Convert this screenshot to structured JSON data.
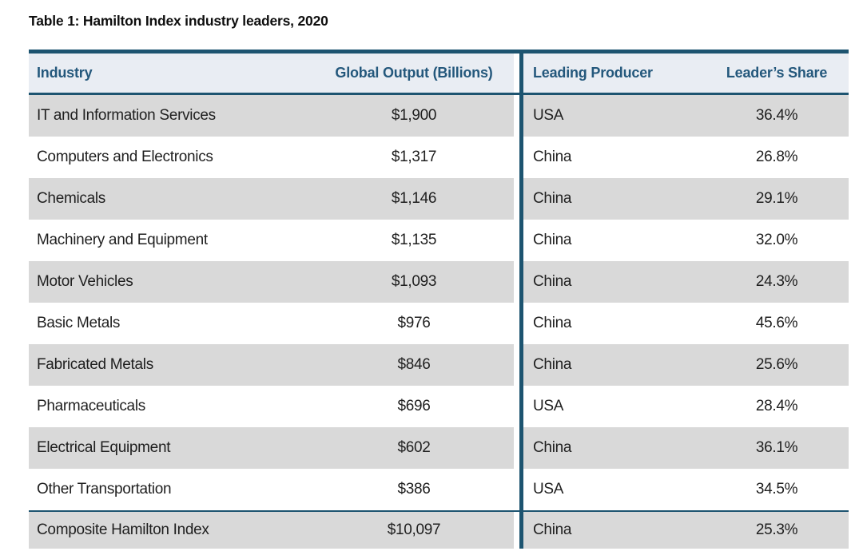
{
  "page_title": "Table 1: Hamilton Index industry leaders, 2020",
  "colors": {
    "teal_border": "#1d5470",
    "header_text": "#24587c",
    "header_bg": "#e9edf3",
    "row_alt_bg": "#d9d9d9",
    "row_bg": "#ffffff",
    "body_text": "#1f1f1f"
  },
  "table": {
    "columns": [
      {
        "key": "industry",
        "label": "Industry"
      },
      {
        "key": "output",
        "label": "Global Output (Billions)"
      },
      {
        "key": "producer",
        "label": "Leading Producer"
      },
      {
        "key": "share",
        "label": "Leader’s Share"
      }
    ],
    "rows": [
      {
        "industry": "IT and Information Services",
        "output": "$1,900",
        "producer": "USA",
        "share": "36.4%"
      },
      {
        "industry": "Computers and Electronics",
        "output": "$1,317",
        "producer": "China",
        "share": "26.8%"
      },
      {
        "industry": "Chemicals",
        "output": "$1,146",
        "producer": "China",
        "share": "29.1%"
      },
      {
        "industry": "Machinery and Equipment",
        "output": "$1,135",
        "producer": "China",
        "share": "32.0%"
      },
      {
        "industry": "Motor Vehicles",
        "output": "$1,093",
        "producer": "China",
        "share": "24.3%"
      },
      {
        "industry": "Basic Metals",
        "output": "$976",
        "producer": "China",
        "share": "45.6%"
      },
      {
        "industry": "Fabricated Metals",
        "output": "$846",
        "producer": "China",
        "share": "25.6%"
      },
      {
        "industry": "Pharmaceuticals",
        "output": "$696",
        "producer": "USA",
        "share": "28.4%"
      },
      {
        "industry": "Electrical Equipment",
        "output": "$602",
        "producer": "China",
        "share": "36.1%"
      },
      {
        "industry": "Other Transportation",
        "output": "$386",
        "producer": "USA",
        "share": "34.5%"
      }
    ],
    "total_row": {
      "industry": "Composite Hamilton Index",
      "output": "$10,097",
      "producer": "China",
      "share": "25.3%"
    }
  }
}
